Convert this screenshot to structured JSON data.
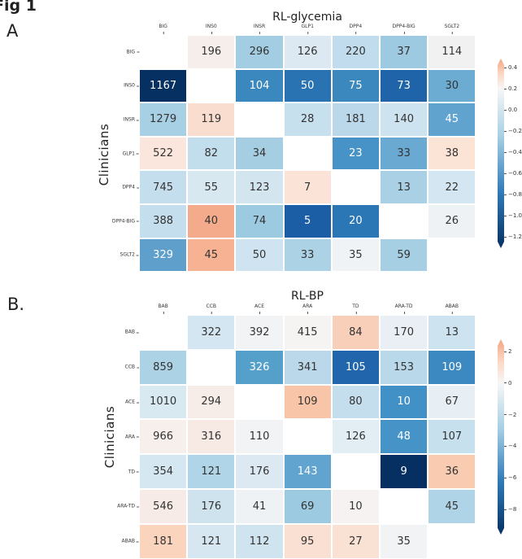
{
  "figure_label": "Fig 1",
  "chart_data": [
    {
      "type": "heatmap",
      "panel_label": "A",
      "title": "RL-glycemia",
      "ylabel": "Clinicians",
      "x_categories": [
        "BIG",
        "INS0",
        "INSR",
        "GLP1",
        "DPP4",
        "DPP4-BIG",
        "SGLT2"
      ],
      "y_categories": [
        "BIG",
        "INS0",
        "INSR",
        "GLP1",
        "DPP4",
        "DPP4-BIG",
        "SGLT2"
      ],
      "values": [
        [
          null,
          196,
          296,
          126,
          220,
          37,
          114
        ],
        [
          1167,
          null,
          104,
          50,
          75,
          73,
          30
        ],
        [
          1279,
          119,
          null,
          28,
          181,
          140,
          45
        ],
        [
          522,
          82,
          34,
          null,
          23,
          33,
          38
        ],
        [
          745,
          55,
          123,
          7,
          null,
          13,
          22
        ],
        [
          388,
          40,
          74,
          5,
          20,
          null,
          26
        ],
        [
          329,
          45,
          50,
          33,
          35,
          59,
          null
        ]
      ],
      "cell_colors": [
        [
          null,
          "#f6eeeb",
          "#a3cde3",
          "#dde9f2",
          "#c1dcec",
          "#9ecae1",
          "#f1f1f1"
        ],
        [
          "#053061",
          null,
          "#3a88bd",
          "#2a73b3",
          "#3b88bf",
          "#1f63a8",
          "#6cabd2"
        ],
        [
          "#a8d0e5",
          "#f9ddcf",
          null,
          "#c7e0ee",
          "#bad8ea",
          "#cde3ef",
          "#5fa3ce"
        ],
        [
          "#fae6dc",
          "#c2ddec",
          "#a5cee3",
          null,
          "#4792c6",
          "#6aaad2",
          "#fbe3d5"
        ],
        [
          "#c5deed",
          "#d7e8f1",
          "#d3e6f0",
          "#fbe3d7",
          null,
          "#a9d0e5",
          "#d4e6f1"
        ],
        [
          "#c4deed",
          "#f4ab8c",
          "#9ccae1",
          "#1c5ea6",
          "#2b76b5",
          null,
          "#eef2f5"
        ],
        [
          "#5e9fcc",
          "#f6b293",
          "#cfe3f0",
          "#acd2e6",
          "#eff3f6",
          "#a6cfe4",
          null
        ]
      ],
      "colorbar": {
        "ticks": [
          "0.4",
          "0.2",
          "0.0",
          "−0.2",
          "−0.4",
          "−0.6",
          "−0.8",
          "−1.0",
          "−1.2"
        ],
        "range": [
          -1.2,
          0.4
        ],
        "colormap": "RdBu_r",
        "colors": {
          "high": "#f4a582",
          "mid": "#f7f7f7",
          "low": "#053061"
        }
      },
      "legend_placement": "right",
      "grid": false
    },
    {
      "type": "heatmap",
      "panel_label": "B.",
      "title": "RL-BP",
      "ylabel": "Clinicians",
      "x_categories": [
        "BAB",
        "CCB",
        "ACE",
        "ARA",
        "TD",
        "ARA-TD",
        "ABAB"
      ],
      "y_categories": [
        "BAB",
        "CCB",
        "ACE",
        "ARA",
        "TD",
        "ARA-TD",
        "ABAB"
      ],
      "values": [
        [
          null,
          322,
          392,
          415,
          84,
          170,
          13
        ],
        [
          859,
          null,
          326,
          341,
          105,
          153,
          109
        ],
        [
          1010,
          294,
          null,
          109,
          80,
          10,
          67
        ],
        [
          966,
          316,
          110,
          null,
          126,
          48,
          107
        ],
        [
          354,
          121,
          176,
          143,
          null,
          9,
          36
        ],
        [
          546,
          176,
          41,
          69,
          10,
          null,
          45
        ],
        [
          181,
          121,
          112,
          95,
          27,
          35,
          null
        ]
      ],
      "cell_colors": [
        [
          null,
          "#d4e6f1",
          "#f2f3f4",
          "#f6f4f3",
          "#f8cfb8",
          "#e9eff4",
          "#cde3ef"
        ],
        [
          "#acd2e6",
          null,
          "#54a0cb",
          "#bad8ea",
          "#2166ac",
          "#b9d8ea",
          "#3c89c1"
        ],
        [
          "#d8e9f2",
          "#f6ece8",
          null,
          "#f9c5a8",
          "#c5deed",
          "#4291c6",
          "#e8eff4"
        ],
        [
          "#f6efec",
          "#f7eae5",
          "#f2f3f4",
          null,
          "#e2edf4",
          "#4693c7",
          "#c7e0ed"
        ],
        [
          "#d5e7f1",
          "#b1d5e8",
          "#dde9f2",
          "#61a4cf",
          null,
          "#053061",
          "#f9ccb1"
        ],
        [
          "#f6ebe6",
          "#cfe3ef",
          "#eef2f5",
          "#9ccae1",
          "#f5f2f1",
          null,
          "#b0d4e7"
        ],
        [
          "#fad4bd",
          "#d6e7f1",
          "#d0e4f0",
          "#fae0d2",
          "#f9e1d4",
          "#f2f3f4",
          null
        ]
      ],
      "colorbar": {
        "ticks": [
          "2",
          "0",
          "−2",
          "−4",
          "−6",
          "−8"
        ],
        "range": [
          -9,
          2.4
        ],
        "colormap": "RdBu_r",
        "colors": {
          "high": "#f4a582",
          "mid": "#f7f7f7",
          "low": "#053061"
        }
      },
      "legend_placement": "right",
      "grid": false
    }
  ]
}
